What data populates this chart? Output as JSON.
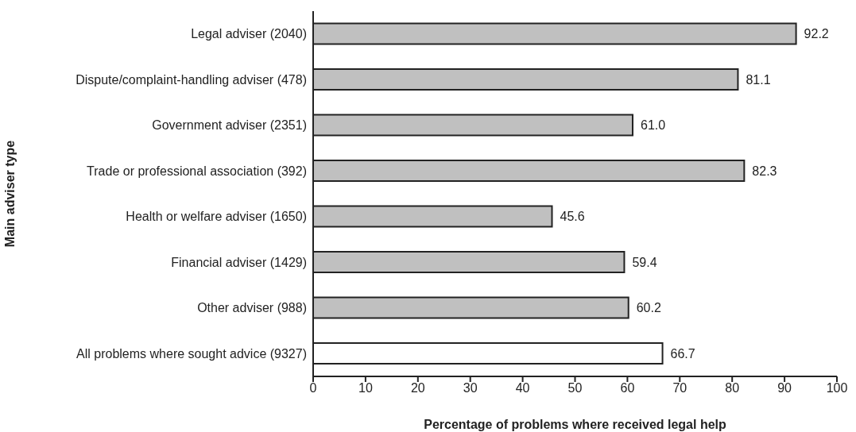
{
  "chart_data": {
    "type": "bar",
    "orientation": "horizontal",
    "xlabel": "Percentage of problems where received legal help",
    "ylabel": "Main adviser type",
    "categories": [
      "Legal adviser (2040)",
      "Dispute/complaint-handling adviser (478)",
      "Government adviser (2351)",
      "Trade or professional association (392)",
      "Health or welfare adviser (1650)",
      "Financial adviser (1429)",
      "Other adviser (988)",
      "All problems where sought advice (9327)"
    ],
    "values": [
      92.2,
      81.1,
      61.0,
      82.3,
      45.6,
      59.4,
      60.2,
      66.7
    ],
    "value_labels": [
      "92.2",
      "81.1",
      "61.0",
      "82.3",
      "45.6",
      "59.4",
      "60.2",
      "66.7"
    ],
    "colors": [
      "#c0c0c0",
      "#c0c0c0",
      "#c0c0c0",
      "#c0c0c0",
      "#c0c0c0",
      "#c0c0c0",
      "#c0c0c0",
      "#ffffff"
    ],
    "xlim": [
      0,
      100
    ],
    "xticks": [
      0,
      10,
      20,
      30,
      40,
      50,
      60,
      70,
      80,
      90,
      100
    ],
    "grid": false
  }
}
